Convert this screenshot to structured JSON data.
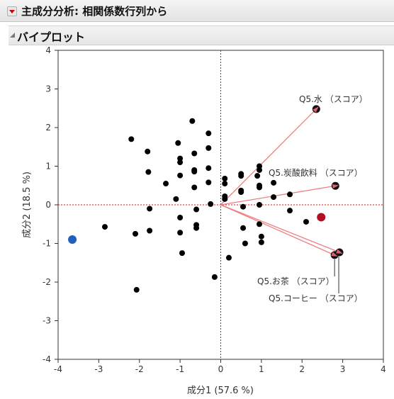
{
  "header": {
    "title": "主成分分析: 相関係数行列から"
  },
  "section": {
    "title": "バイプロット"
  },
  "icons": {
    "menu": "red-triangle-menu-icon",
    "disclosure": "disclosure-triangle-icon"
  },
  "colors": {
    "points": "#000000",
    "vector": "#ef7e80",
    "blue_point": "#1f5fbf",
    "red_point": "#b01020",
    "refline": "#e01010"
  },
  "chart_data": {
    "type": "scatter",
    "xlabel": "成分1 (57.6 %)",
    "ylabel": "成分2 (18.5 %)",
    "xlim": [
      -4,
      4
    ],
    "ylim": [
      -4,
      4
    ],
    "xticks": [
      "-4",
      "-3",
      "-2",
      "-1",
      "0",
      "1",
      "2",
      "3",
      "4"
    ],
    "yticks": [
      "-4",
      "-3",
      "-2",
      "-1",
      "0",
      "1",
      "2",
      "3",
      "4"
    ],
    "reference_lines": {
      "x": 0,
      "y": 0
    },
    "points": [
      [
        -2.2,
        1.7
      ],
      [
        -1.8,
        1.38
      ],
      [
        -1.78,
        0.85
      ],
      [
        -1.35,
        0.55
      ],
      [
        -1.1,
        0.15
      ],
      [
        -1.75,
        -0.1
      ],
      [
        -1.75,
        -0.67
      ],
      [
        -2.1,
        -0.75
      ],
      [
        -2.85,
        -0.57
      ],
      [
        -2.07,
        -2.2
      ],
      [
        -1.05,
        1.6
      ],
      [
        -1.0,
        1.2
      ],
      [
        -1.0,
        1.1
      ],
      [
        -1.0,
        0.76
      ],
      [
        -1.0,
        -0.33
      ],
      [
        -1.0,
        -0.72
      ],
      [
        -0.95,
        -1.25
      ],
      [
        -0.7,
        2.17
      ],
      [
        -0.65,
        1.33
      ],
      [
        -0.65,
        0.9
      ],
      [
        -0.65,
        0.86
      ],
      [
        -0.65,
        0.45
      ],
      [
        -0.6,
        -0.12
      ],
      [
        -0.6,
        -0.52
      ],
      [
        -0.6,
        -0.6
      ],
      [
        -0.3,
        1.85
      ],
      [
        -0.3,
        1.47
      ],
      [
        -0.3,
        0.95
      ],
      [
        -0.3,
        0.58
      ],
      [
        -0.25,
        0.02
      ],
      [
        -0.15,
        -1.87
      ],
      [
        0.1,
        0.68
      ],
      [
        0.1,
        0.55
      ],
      [
        0.1,
        0.22
      ],
      [
        0.1,
        0.15
      ],
      [
        0.2,
        -1.37
      ],
      [
        0.5,
        0.8
      ],
      [
        0.5,
        0.75
      ],
      [
        0.5,
        0.37
      ],
      [
        0.5,
        0.33
      ],
      [
        0.55,
        -0.05
      ],
      [
        0.55,
        -0.6
      ],
      [
        0.6,
        -1.0
      ],
      [
        0.9,
        0.75
      ],
      [
        0.95,
        1.0
      ],
      [
        0.95,
        0.9
      ],
      [
        0.95,
        0.5
      ],
      [
        0.95,
        0.45
      ],
      [
        0.95,
        0.0
      ],
      [
        0.95,
        -0.5
      ],
      [
        1.0,
        -0.82
      ],
      [
        1.0,
        -0.97
      ],
      [
        1.3,
        0.57
      ],
      [
        1.3,
        0.2
      ],
      [
        1.7,
        0.27
      ],
      [
        1.7,
        -0.15
      ],
      [
        2.1,
        -0.44
      ]
    ],
    "highlight_points": [
      {
        "x": -3.65,
        "y": -0.9,
        "color": "#1f5fbf"
      },
      {
        "x": 2.47,
        "y": -0.32,
        "color": "#b01020"
      }
    ],
    "vectors": [
      {
        "name": "Q5.水 （スコア）",
        "x": 2.35,
        "y": 2.48
      },
      {
        "name": "Q5.炭酸飲料 （スコア）",
        "x": 2.82,
        "y": 0.49
      },
      {
        "name": "Q5.お茶 （スコア）",
        "x": 2.8,
        "y": -1.3
      },
      {
        "name": "Q5.コーヒー （スコア）",
        "x": 2.92,
        "y": -1.23
      }
    ]
  }
}
